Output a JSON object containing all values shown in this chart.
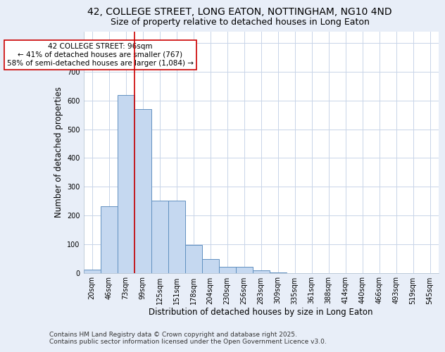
{
  "title_line1": "42, COLLEGE STREET, LONG EATON, NOTTINGHAM, NG10 4ND",
  "title_line2": "Size of property relative to detached houses in Long Eaton",
  "xlabel": "Distribution of detached houses by size in Long Eaton",
  "ylabel": "Number of detached properties",
  "categories": [
    "20sqm",
    "46sqm",
    "73sqm",
    "99sqm",
    "125sqm",
    "151sqm",
    "178sqm",
    "204sqm",
    "230sqm",
    "256sqm",
    "283sqm",
    "309sqm",
    "335sqm",
    "361sqm",
    "388sqm",
    "414sqm",
    "440sqm",
    "466sqm",
    "493sqm",
    "519sqm",
    "545sqm"
  ],
  "values": [
    10,
    232,
    620,
    570,
    252,
    252,
    98,
    48,
    22,
    22,
    8,
    2,
    0,
    0,
    0,
    0,
    0,
    0,
    0,
    0,
    0
  ],
  "bar_color": "#c5d8f0",
  "bar_edge_color": "#6090c0",
  "grid_color": "#c8d4e8",
  "background_color": "#e8eef8",
  "plot_bg_color": "#ffffff",
  "vline_color": "#cc0000",
  "annotation_text": "42 COLLEGE STREET: 96sqm\n← 41% of detached houses are smaller (767)\n58% of semi-detached houses are larger (1,084) →",
  "annotation_box_color": "#ffffff",
  "annotation_box_edge": "#cc0000",
  "ylim": [
    0,
    840
  ],
  "yticks": [
    0,
    100,
    200,
    300,
    400,
    500,
    600,
    700,
    800
  ],
  "footer_line1": "Contains HM Land Registry data © Crown copyright and database right 2025.",
  "footer_line2": "Contains public sector information licensed under the Open Government Licence v3.0.",
  "title_fontsize": 10,
  "subtitle_fontsize": 9,
  "axis_label_fontsize": 8.5,
  "tick_fontsize": 7,
  "annotation_fontsize": 7.5,
  "footer_fontsize": 6.5
}
